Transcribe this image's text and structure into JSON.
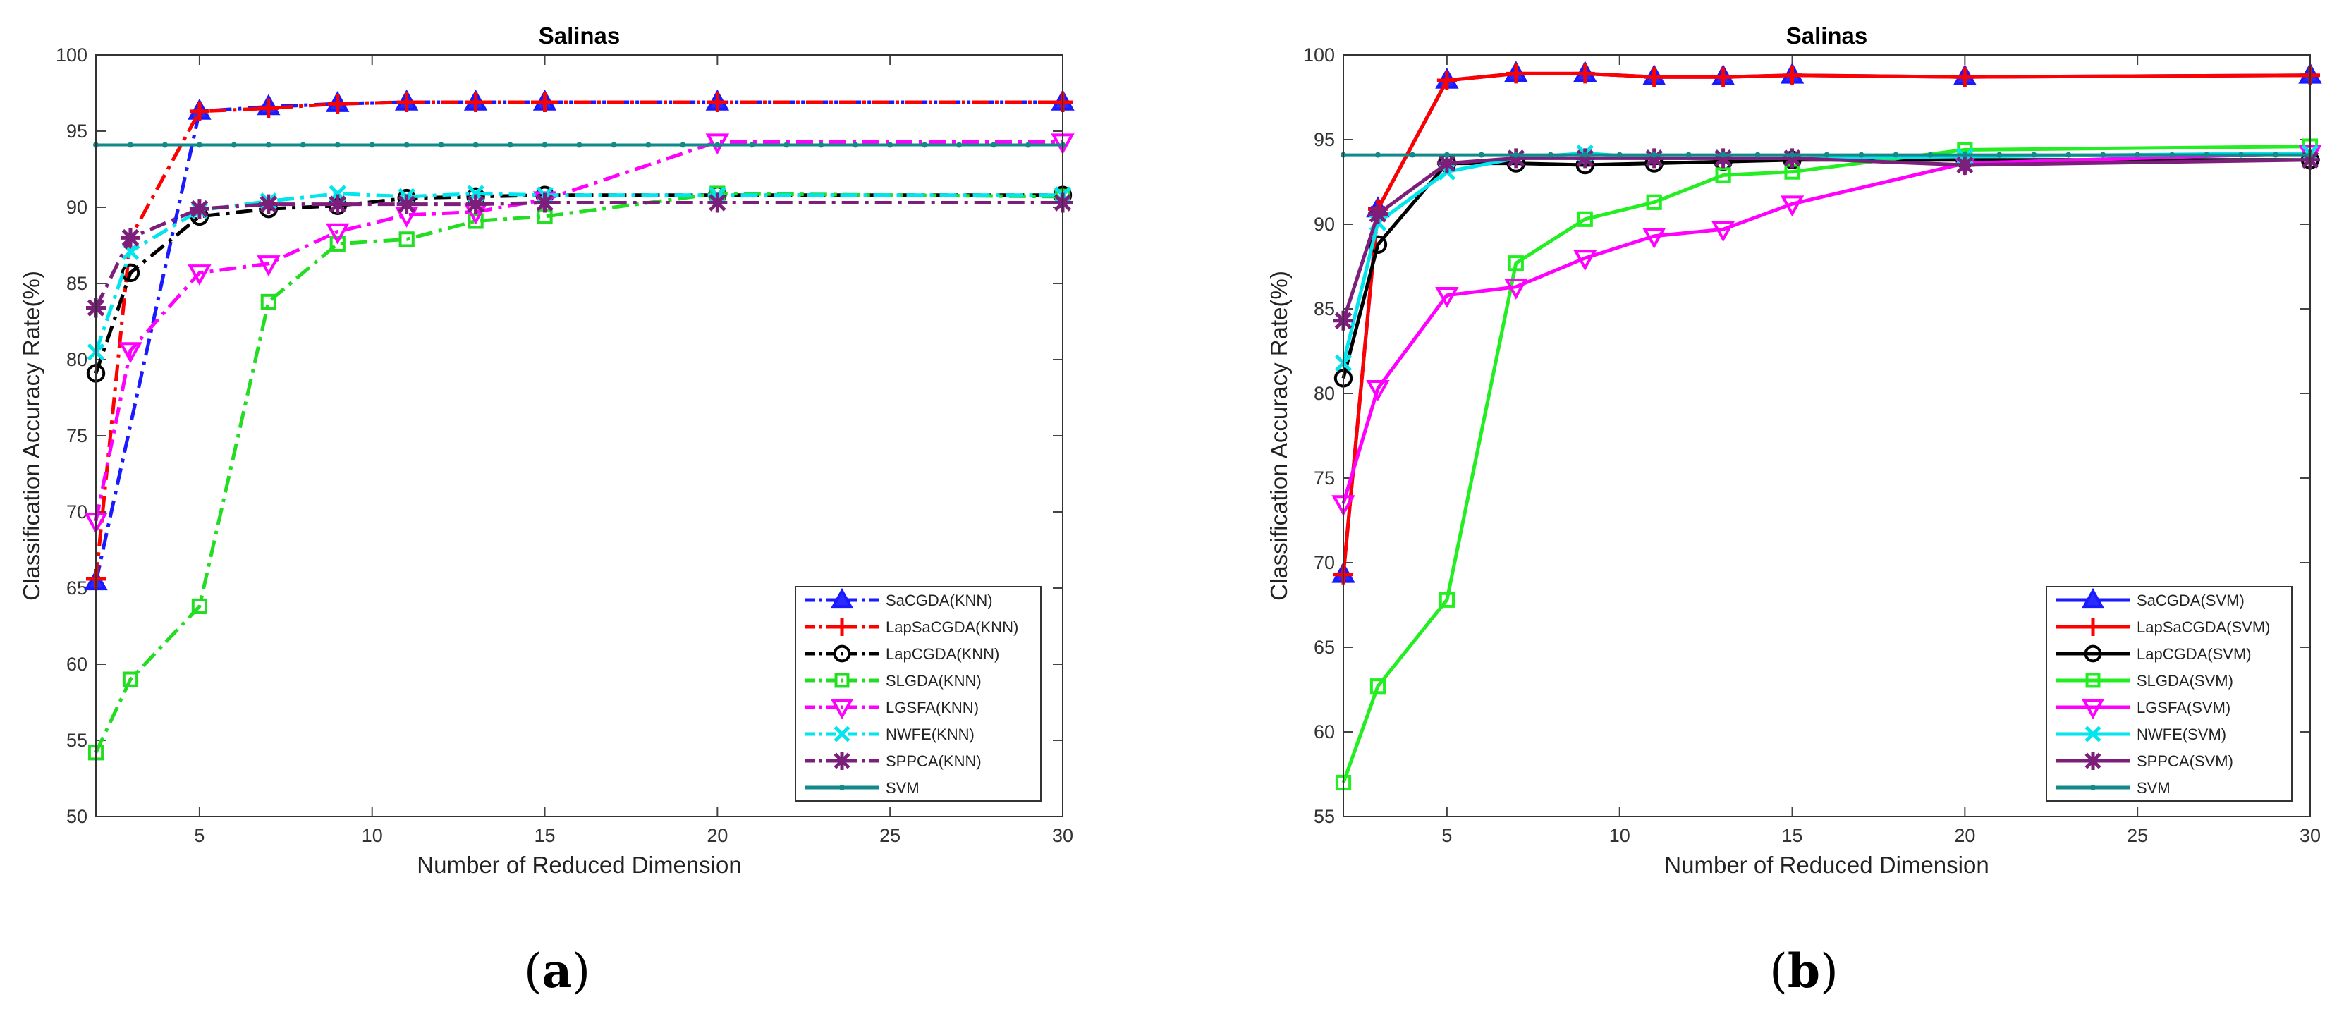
{
  "panels": [
    {
      "label_open": "(",
      "label_letter": "a",
      "label_close": ")"
    },
    {
      "label_open": "(",
      "label_letter": "b",
      "label_close": ")"
    }
  ],
  "chart_data": [
    {
      "type": "line",
      "title": "Salinas",
      "xlabel": "Number of Reduced Dimension",
      "ylabel": "Classification Accuracy Rate(%)",
      "xlim": [
        2,
        30
      ],
      "ylim": [
        50,
        100
      ],
      "xticks": [
        5,
        10,
        15,
        20,
        25,
        30
      ],
      "yticks": [
        50,
        55,
        60,
        65,
        70,
        75,
        80,
        85,
        90,
        95,
        100
      ],
      "legend_position": "bottom-right",
      "series": [
        {
          "name": "SaCGDA(KNN)",
          "color": "#1a1aff",
          "dash": "dashdot",
          "marker": "triangle-up",
          "marker_fill": "#2b2bff",
          "x": [
            2,
            5,
            7,
            9,
            11,
            13,
            15,
            20,
            30
          ],
          "y": [
            65.4,
            96.3,
            96.6,
            96.8,
            96.9,
            96.9,
            96.9,
            96.9,
            96.9
          ]
        },
        {
          "name": "LapSaCGDA(KNN)",
          "color": "#ff0000",
          "dash": "dashdot",
          "marker": "plus",
          "marker_fill": "none",
          "x": [
            2,
            3,
            5,
            7,
            9,
            11,
            13,
            15,
            20,
            30
          ],
          "y": [
            65.6,
            88.0,
            96.3,
            96.5,
            96.8,
            96.9,
            96.9,
            96.9,
            96.9,
            96.9
          ]
        },
        {
          "name": "LapCGDA(KNN)",
          "color": "#000000",
          "dash": "dashdot",
          "marker": "circle",
          "marker_fill": "none",
          "x": [
            2,
            3,
            5,
            7,
            9,
            11,
            13,
            15,
            20,
            30
          ],
          "y": [
            79.1,
            85.7,
            89.4,
            89.9,
            90.1,
            90.6,
            90.7,
            90.8,
            90.8,
            90.8
          ]
        },
        {
          "name": "SLGDA(KNN)",
          "color": "#22dd22",
          "dash": "dashdot",
          "marker": "square",
          "marker_fill": "none",
          "x": [
            2,
            3,
            5,
            7,
            9,
            11,
            13,
            15,
            20,
            30
          ],
          "y": [
            54.2,
            59.0,
            63.8,
            83.8,
            87.6,
            87.9,
            89.1,
            89.4,
            90.9,
            90.7
          ]
        },
        {
          "name": "LGSFA(KNN)",
          "color": "#ff00ff",
          "dash": "dashdot",
          "marker": "triangle-down",
          "marker_fill": "none",
          "x": [
            2,
            3,
            5,
            7,
            9,
            11,
            13,
            15,
            20,
            30
          ],
          "y": [
            69.4,
            80.6,
            85.7,
            86.3,
            88.4,
            89.5,
            89.7,
            90.5,
            94.3,
            94.3
          ]
        },
        {
          "name": "NWFE(KNN)",
          "color": "#00e5ee",
          "dash": "dashdot",
          "marker": "x",
          "marker_fill": "none",
          "x": [
            2,
            3,
            5,
            7,
            9,
            11,
            13,
            15,
            20,
            30
          ],
          "y": [
            80.5,
            87.1,
            89.8,
            90.4,
            90.9,
            90.7,
            90.9,
            90.8,
            90.8,
            90.8
          ]
        },
        {
          "name": "SPPCA(KNN)",
          "color": "#7b1f7b",
          "dash": "dashdot",
          "marker": "star",
          "marker_fill": "none",
          "x": [
            2,
            3,
            5,
            7,
            9,
            11,
            13,
            15,
            20,
            30
          ],
          "y": [
            83.4,
            88.0,
            89.9,
            90.2,
            90.2,
            90.2,
            90.2,
            90.3,
            90.3,
            90.3
          ]
        },
        {
          "name": "SVM",
          "color": "#138a8a",
          "dash": "solid",
          "marker": "dot",
          "marker_fill": "#138a8a",
          "x": [
            2,
            30
          ],
          "y": [
            94.1,
            94.1
          ]
        }
      ]
    },
    {
      "type": "line",
      "title": "Salinas",
      "xlabel": "Number of Reduced Dimension",
      "ylabel": "Classification Accuracy Rate(%)",
      "xlim": [
        2,
        30
      ],
      "ylim": [
        55,
        100
      ],
      "xticks": [
        5,
        10,
        15,
        20,
        25,
        30
      ],
      "yticks": [
        55,
        60,
        65,
        70,
        75,
        80,
        85,
        90,
        95,
        100
      ],
      "legend_position": "bottom-right",
      "series": [
        {
          "name": "SaCGDA(SVM)",
          "color": "#1a1aff",
          "dash": "solid",
          "marker": "triangle-up",
          "marker_fill": "#2b2bff",
          "x": [
            2,
            3,
            5,
            7,
            9,
            11,
            13,
            15,
            20,
            30
          ],
          "y": [
            69.3,
            90.9,
            98.5,
            98.9,
            98.9,
            98.7,
            98.7,
            98.8,
            98.7,
            98.8
          ]
        },
        {
          "name": "LapSaCGDA(SVM)",
          "color": "#ff0000",
          "dash": "solid",
          "marker": "plus",
          "marker_fill": "none",
          "x": [
            2,
            3,
            5,
            7,
            9,
            11,
            13,
            15,
            20,
            30
          ],
          "y": [
            69.3,
            90.9,
            98.5,
            98.9,
            98.9,
            98.7,
            98.7,
            98.8,
            98.7,
            98.8
          ]
        },
        {
          "name": "LapCGDA(SVM)",
          "color": "#000000",
          "dash": "solid",
          "marker": "circle",
          "marker_fill": "none",
          "x": [
            2,
            3,
            5,
            7,
            9,
            11,
            13,
            15,
            20,
            30
          ],
          "y": [
            80.9,
            88.8,
            93.6,
            93.6,
            93.5,
            93.6,
            93.7,
            93.8,
            93.8,
            93.8
          ]
        },
        {
          "name": "SLGDA(SVM)",
          "color": "#22ee22",
          "dash": "solid",
          "marker": "square",
          "marker_fill": "none",
          "x": [
            2,
            3,
            5,
            7,
            9,
            11,
            13,
            15,
            20,
            30
          ],
          "y": [
            57.0,
            62.7,
            67.8,
            87.7,
            90.3,
            91.3,
            92.9,
            93.1,
            94.4,
            94.6
          ]
        },
        {
          "name": "LGSFA(SVM)",
          "color": "#ff00ff",
          "dash": "solid",
          "marker": "triangle-down",
          "marker_fill": "none",
          "x": [
            2,
            3,
            5,
            7,
            9,
            11,
            13,
            15,
            20,
            30
          ],
          "y": [
            73.5,
            80.3,
            85.8,
            86.3,
            88.0,
            89.3,
            89.7,
            91.2,
            93.6,
            94.2
          ]
        },
        {
          "name": "NWFE(SVM)",
          "color": "#00e5ee",
          "dash": "solid",
          "marker": "x",
          "marker_fill": "none",
          "x": [
            2,
            3,
            5,
            7,
            9,
            11,
            13,
            15,
            20,
            30
          ],
          "y": [
            81.8,
            90.1,
            93.1,
            93.9,
            94.2,
            93.9,
            93.9,
            93.9,
            94.0,
            94.2
          ]
        },
        {
          "name": "SPPCA(SVM)",
          "color": "#7b1f7b",
          "dash": "solid",
          "marker": "star",
          "marker_fill": "none",
          "x": [
            2,
            3,
            5,
            7,
            9,
            11,
            13,
            15,
            20,
            30
          ],
          "y": [
            84.3,
            90.6,
            93.6,
            93.9,
            93.9,
            93.9,
            93.9,
            93.9,
            93.5,
            93.8
          ]
        },
        {
          "name": "SVM",
          "color": "#138a8a",
          "dash": "solid",
          "marker": "dot",
          "marker_fill": "#138a8a",
          "x": [
            2,
            30
          ],
          "y": [
            94.1,
            94.1
          ]
        }
      ]
    }
  ]
}
